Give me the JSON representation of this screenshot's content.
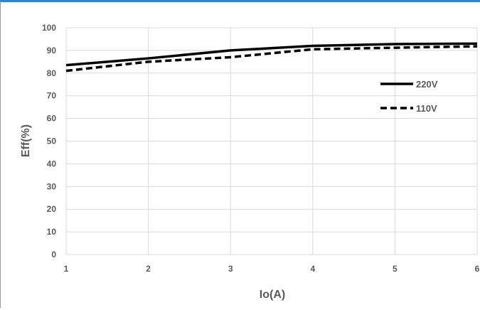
{
  "chart_data": {
    "type": "line",
    "title": "",
    "xlabel": "Io(A)",
    "ylabel": "Eff(%)",
    "x": [
      1,
      2,
      3,
      4,
      5,
      6
    ],
    "x_tick_labels": [
      "1",
      "2",
      "3",
      "4",
      "5",
      "6"
    ],
    "y_tick_labels": [
      "0",
      "10",
      "20",
      "30",
      "40",
      "50",
      "60",
      "70",
      "80",
      "90",
      "100"
    ],
    "xlim": [
      1,
      6
    ],
    "ylim": [
      0,
      100
    ],
    "grid": true,
    "legend_position": "right",
    "series": [
      {
        "name": "220V",
        "values": [
          83.5,
          86.5,
          90,
          92,
          92.8,
          93
        ],
        "style": "solid",
        "color": "#000000"
      },
      {
        "name": "110V",
        "values": [
          81,
          85,
          87,
          90.5,
          91.2,
          91.8
        ],
        "style": "dashed",
        "color": "#000000"
      }
    ]
  }
}
